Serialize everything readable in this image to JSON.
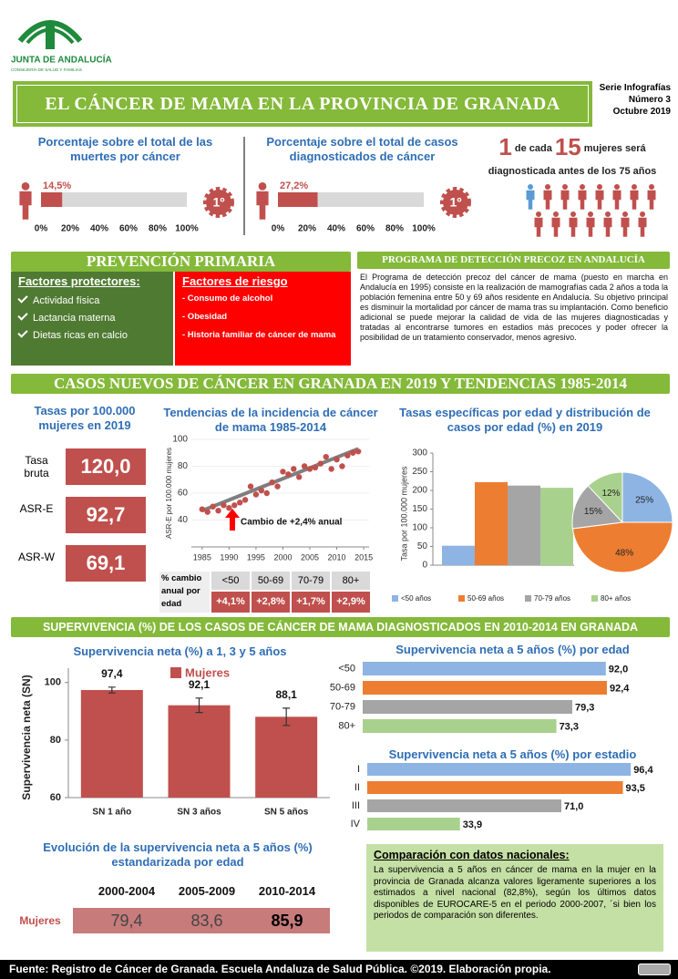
{
  "header": {
    "org": "JUNTA DE ANDALUCÍA",
    "dept": "CONSEJERÍA DE SALUD Y FAMILIAS",
    "title": "EL CÁNCER DE MAMA EN LA PROVINCIA DE GRANADA",
    "series_lines": [
      "Serie Infografías",
      "Número 3",
      "Octubre 2019"
    ]
  },
  "percent_bars": [
    {
      "title": "Porcentaje sobre el total de las muertes por cáncer",
      "value": 14.5,
      "value_label": "14,5%",
      "rank": "1º"
    },
    {
      "title": "Porcentaje sobre el total de casos diagnosticados de cáncer",
      "value": 27.2,
      "value_label": "27,2%",
      "rank": "1º"
    }
  ],
  "percent_axis": {
    "xlim": [
      0,
      100
    ],
    "xticks": [
      {
        "value": 0,
        "label": "0%"
      },
      {
        "value": 20,
        "label": "20%"
      },
      {
        "value": 40,
        "label": "40%"
      },
      {
        "value": 60,
        "label": "60%"
      },
      {
        "value": 80,
        "label": "80%"
      },
      {
        "value": 100,
        "label": "100%"
      }
    ]
  },
  "risk": {
    "count": 1,
    "of_text": "de cada",
    "total": 15,
    "end_text": "mujeres será",
    "line2": "diagnosticada antes de los 75 años"
  },
  "prevention": {
    "title": "PREVENCIÓN PRIMARIA",
    "protective": {
      "title": "Factores protectores:",
      "items": [
        "Actividad física",
        "Lactancia materna",
        "Dietas ricas en calcio"
      ]
    },
    "risk": {
      "title": "Factores de riesgo",
      "items": [
        "- Consumo de alcohol",
        "- Obesidad",
        "- Historia familiar de cáncer de mama"
      ]
    }
  },
  "program": {
    "title": "PROGRAMA DE DETECCIÓN PRECOZ EN ANDALUCÍA",
    "text": "El Programa de detección precoz del cáncer de mama (puesto en marcha en Andalucía en 1995) consiste en la realización de mamografías cada 2 años a toda la población femenina entre 50 y 69 años residente en Andalucía. Su objetivo principal es disminuir la mortalidad por cáncer de mama tras su implantación. Como beneficio adicional se puede mejorar la calidad de vida de las mujeres diagnosticadas y tratadas al encontrarse tumores en estadios más precoces y poder ofrecer la posibilidad de un tratamiento conservador, menos agresivo."
  },
  "cases_banner": "CASOS NUEVOS DE CÁNCER EN GRANADA EN 2019 Y TENDENCIAS 1985-2014",
  "rates": {
    "title": "Tasas por 100.000 mujeres en 2019",
    "categories": [
      "Tasa bruta",
      "ASR-E",
      "ASR-W"
    ],
    "values": [
      120.0,
      92.7,
      69.1
    ],
    "value_labels": [
      "120,0",
      "92,7",
      "69,1"
    ]
  },
  "trend": {
    "type": "scatter",
    "title": "Tendencias de la incidencia de cáncer de mama 1985-2014",
    "ylabel": "ASR-E por 100.000 mujeres",
    "x": [
      1985,
      1986,
      1987,
      1988,
      1989,
      1990,
      1991,
      1992,
      1993,
      1994,
      1995,
      1996,
      1997,
      1998,
      1999,
      2000,
      2001,
      2002,
      2003,
      2004,
      2005,
      2006,
      2007,
      2008,
      2009,
      2010,
      2011,
      2012,
      2013,
      2014
    ],
    "values": [
      48,
      46,
      50,
      47,
      51,
      49,
      51,
      53,
      55,
      65,
      59,
      62,
      60,
      68,
      65,
      76,
      74,
      78,
      72,
      80,
      78,
      79,
      82,
      87,
      78,
      85,
      80,
      88,
      90,
      91
    ],
    "fit": {
      "x": [
        1985,
        2014
      ],
      "values": [
        47,
        93
      ]
    },
    "xlim": [
      1983,
      2016
    ],
    "xticks": [
      1985,
      1990,
      1995,
      2000,
      2005,
      2010,
      2015
    ],
    "ylim": [
      20,
      100
    ],
    "yticks": [
      40,
      60,
      80,
      100
    ],
    "annotation": "Cambio de +2,4% anual",
    "table": {
      "header": [
        "% cambio anual por edad",
        "<50",
        "50-69",
        "70-79",
        "80+"
      ],
      "row": [
        "+4,1%",
        "+2,8%",
        "+1,7%",
        "+2,9%"
      ]
    }
  },
  "age_rates": {
    "type": "bar",
    "title": "Tasas específicas por edad y distribución de casos por edad (%) en 2019",
    "ylabel": "Tasa por 100.000 mujeres",
    "categories": [
      "<50 años",
      "50-69 años",
      "70-79 años",
      "80+ años"
    ],
    "colors": [
      "#8eb4e3",
      "#ed7d31",
      "#a5a5a5",
      "#a9d18e"
    ],
    "values": [
      52,
      222,
      213,
      207
    ],
    "ylim": [
      0,
      300
    ],
    "yticks": [
      0,
      50,
      100,
      150,
      200,
      250,
      300
    ],
    "pie": {
      "values": [
        25,
        48,
        15,
        12
      ],
      "value_labels": [
        "25%",
        "48%",
        "15%",
        "12%"
      ]
    }
  },
  "survival_banner": "SUPERVIVENCIA (%) DE LOS CASOS DE CÁNCER DE MAMA DIAGNOSTICADOS EN 2010-2014 EN GRANADA",
  "survival": {
    "type": "bar",
    "title": "Supervivencia neta (%) a 1, 3 y 5 años",
    "ylabel": "Supervivencia neta (SN)",
    "series_name": "Mujeres",
    "color": "#c0504d",
    "categories": [
      "SN 1 año",
      "SN 3 años",
      "SN 5 años"
    ],
    "values": [
      97.4,
      92.1,
      88.1
    ],
    "value_labels": [
      "97,4",
      "92,1",
      "88,1"
    ],
    "errors": [
      1,
      2.5,
      3
    ],
    "ylim": [
      60,
      105
    ],
    "yticks": [
      60,
      80,
      100
    ]
  },
  "by_age": {
    "type": "hbar",
    "title": "Supervivencia neta a 5 años (%) por edad",
    "categories": [
      "<50",
      "50-69",
      "70-79",
      "80+"
    ],
    "values": [
      92.0,
      92.4,
      79.3,
      73.3
    ],
    "value_labels": [
      "92,0",
      "92,4",
      "79,3",
      "73,3"
    ],
    "colors": [
      "#8eb4e3",
      "#ed7d31",
      "#a5a5a5",
      "#a9d18e"
    ],
    "xlim": [
      0,
      100
    ]
  },
  "by_stage": {
    "type": "hbar",
    "title": "Supervivencia neta a 5 años (%) por estadio",
    "categories": [
      "I",
      "II",
      "III",
      "IV"
    ],
    "values": [
      96.4,
      93.5,
      71.0,
      33.9
    ],
    "value_labels": [
      "96,4",
      "93,5",
      "71,0",
      "33,9"
    ],
    "colors": [
      "#8eb4e3",
      "#ed7d31",
      "#a5a5a5",
      "#a9d18e"
    ],
    "xlim": [
      0,
      100
    ]
  },
  "evolution": {
    "title": "Evolución de la supervivencia neta a 5 años (%) estandarizada por edad",
    "row_label": "Mujeres",
    "periods": [
      "2000-2004",
      "2005-2009",
      "2010-2014"
    ],
    "values": [
      79.4,
      83.6,
      85.9
    ],
    "value_labels": [
      "79,4",
      "83,6",
      "85,9"
    ]
  },
  "comparison": {
    "title": "Comparación con datos nacionales:",
    "text": "La supervivencia a 5 años en cáncer de mama en la mujer en la provincia de Granada alcanza valores ligeramente superiores a los estimados a nivel nacional (82,8%), según los últimos datos disponibles de EUROCARE-5 en el periodo 2000-2007, ´si bien los periodos de comparación son diferentes."
  },
  "footer": "Fuente: Registro de Cáncer de Granada. Escuela Andaluza de Salud Pública. ©2019. Elaboración propia."
}
